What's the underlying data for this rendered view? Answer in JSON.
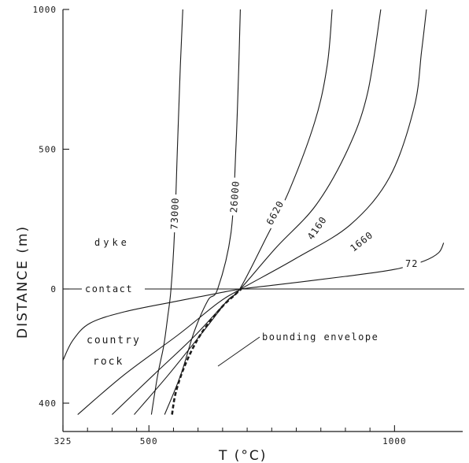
{
  "chart_data": {
    "type": "line",
    "xlabel": "T (°C)",
    "ylabel": "DISTANCE (m)",
    "xlim": [
      325,
      1150
    ],
    "x_ticks": [
      325,
      500,
      1000
    ],
    "x_minor_ticks": [
      375,
      425,
      475,
      550,
      600,
      650,
      700,
      750,
      800,
      850,
      900,
      950
    ],
    "y_ticks": [
      {
        "value": 1000,
        "label": "1000"
      },
      {
        "value": 500,
        "label": "500"
      },
      {
        "value": 0,
        "label": "0"
      },
      {
        "value": -400,
        "label": "400"
      }
    ],
    "ylim": [
      -440,
      1000
    ],
    "y_scale_note": "upper part (dyke) 0–1000 m, lower part (country rock) 0–400 m at larger scale",
    "region_labels": {
      "dyke": "dyke",
      "contact": "contact",
      "country": "country",
      "rock": "rock",
      "envelope": "bounding envelope"
    },
    "series": [
      {
        "name": "73000",
        "points": [
          [
            505,
            -440
          ],
          [
            518,
            -300
          ],
          [
            530,
            -200
          ],
          [
            538,
            -100
          ],
          [
            545,
            0
          ],
          [
            552,
            200
          ],
          [
            558,
            500
          ],
          [
            564,
            800
          ],
          [
            569,
            1000
          ]
        ]
      },
      {
        "name": "26000",
        "points": [
          [
            532,
            -440
          ],
          [
            565,
            -300
          ],
          [
            592,
            -150
          ],
          [
            620,
            -40
          ],
          [
            640,
            0
          ],
          [
            667,
            200
          ],
          [
            677,
            500
          ],
          [
            683,
            800
          ],
          [
            686,
            1000
          ]
        ]
      },
      {
        "name": "6620",
        "points": [
          [
            470,
            -440
          ],
          [
            540,
            -300
          ],
          [
            610,
            -150
          ],
          [
            660,
            -40
          ],
          [
            685,
            0
          ],
          [
            735,
            170
          ],
          [
            785,
            350
          ],
          [
            838,
            600
          ],
          [
            863,
            800
          ],
          [
            873,
            1000
          ]
        ]
      },
      {
        "name": "4160",
        "points": [
          [
            425,
            -440
          ],
          [
            510,
            -300
          ],
          [
            590,
            -170
          ],
          [
            655,
            -50
          ],
          [
            686,
            0
          ],
          [
            760,
            150
          ],
          [
            840,
            300
          ],
          [
            905,
            500
          ],
          [
            945,
            700
          ],
          [
            972,
            1000
          ]
        ]
      },
      {
        "name": "1660",
        "points": [
          [
            355,
            -440
          ],
          [
            450,
            -300
          ],
          [
            560,
            -160
          ],
          [
            640,
            -50
          ],
          [
            687,
            0
          ],
          [
            800,
            110
          ],
          [
            910,
            230
          ],
          [
            990,
            400
          ],
          [
            1040,
            650
          ],
          [
            1055,
            850
          ],
          [
            1065,
            1000
          ]
        ]
      },
      {
        "name": "72",
        "points": [
          [
            325,
            -250
          ],
          [
            345,
            -180
          ],
          [
            380,
            -120
          ],
          [
            450,
            -80
          ],
          [
            550,
            -45
          ],
          [
            640,
            -15
          ],
          [
            688,
            0
          ],
          [
            760,
            15
          ],
          [
            900,
            45
          ],
          [
            1000,
            70
          ],
          [
            1060,
            100
          ],
          [
            1090,
            130
          ],
          [
            1100,
            165
          ]
        ]
      }
    ],
    "bounding_envelope": [
      [
        547,
        -440
      ],
      [
        555,
        -360
      ],
      [
        575,
        -260
      ],
      [
        605,
        -160
      ],
      [
        645,
        -70
      ],
      [
        675,
        -20
      ],
      [
        688,
        0
      ]
    ],
    "colors": {
      "line": "#1a1a1a",
      "background": "#ffffff"
    }
  }
}
